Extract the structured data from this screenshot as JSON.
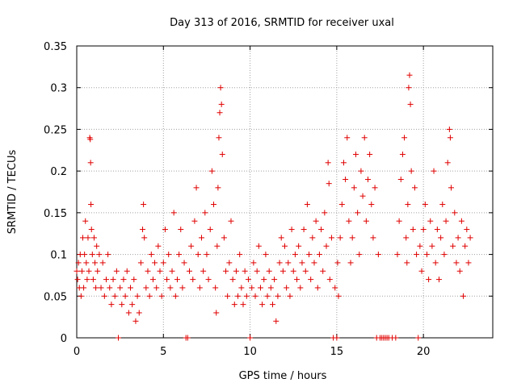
{
  "chart_data": {
    "type": "scatter",
    "title": "Day 313 of 2016, SRMTID for receiver uxal",
    "xlabel": "GPS time / hours",
    "ylabel": "SRMTID / TECUs",
    "xlim": [
      0,
      24
    ],
    "ylim": [
      0,
      0.35
    ],
    "xticks": [
      0,
      5,
      10,
      15,
      20
    ],
    "yticks": [
      0,
      0.05,
      0.1,
      0.15,
      0.2,
      0.25,
      0.3,
      0.35
    ],
    "grid": true,
    "marker": "+",
    "color": "#e00000",
    "series": [
      {
        "name": "SRMTID",
        "points": [
          [
            0.0,
            0.08
          ],
          [
            0.05,
            0.07
          ],
          [
            0.1,
            0.09
          ],
          [
            0.15,
            0.06
          ],
          [
            0.2,
            0.1
          ],
          [
            0.25,
            0.05
          ],
          [
            0.3,
            0.08
          ],
          [
            0.35,
            0.12
          ],
          [
            0.4,
            0.06
          ],
          [
            0.45,
            0.1
          ],
          [
            0.5,
            0.14
          ],
          [
            0.55,
            0.09
          ],
          [
            0.6,
            0.07
          ],
          [
            0.65,
            0.12
          ],
          [
            0.7,
            0.08
          ],
          [
            0.75,
            0.24
          ],
          [
            0.78,
            0.238
          ],
          [
            0.8,
            0.21
          ],
          [
            0.82,
            0.16
          ],
          [
            0.85,
            0.13
          ],
          [
            0.9,
            0.1
          ],
          [
            0.95,
            0.07
          ],
          [
            1.0,
            0.12
          ],
          [
            1.05,
            0.09
          ],
          [
            1.1,
            0.06
          ],
          [
            1.15,
            0.11
          ],
          [
            1.2,
            0.08
          ],
          [
            1.3,
            0.1
          ],
          [
            1.4,
            0.06
          ],
          [
            1.5,
            0.09
          ],
          [
            1.6,
            0.05
          ],
          [
            1.7,
            0.07
          ],
          [
            1.8,
            0.1
          ],
          [
            1.9,
            0.06
          ],
          [
            2.0,
            0.04
          ],
          [
            2.1,
            0.07
          ],
          [
            2.2,
            0.05
          ],
          [
            2.3,
            0.08
          ],
          [
            2.4,
            0.0
          ],
          [
            2.5,
            0.06
          ],
          [
            2.6,
            0.04
          ],
          [
            2.7,
            0.07
          ],
          [
            2.8,
            0.05
          ],
          [
            2.9,
            0.08
          ],
          [
            3.0,
            0.03
          ],
          [
            3.1,
            0.06
          ],
          [
            3.2,
            0.04
          ],
          [
            3.3,
            0.07
          ],
          [
            3.4,
            0.02
          ],
          [
            3.5,
            0.05
          ],
          [
            3.6,
            0.03
          ],
          [
            3.7,
            0.09
          ],
          [
            3.8,
            0.13
          ],
          [
            3.85,
            0.16
          ],
          [
            3.9,
            0.12
          ],
          [
            4.0,
            0.06
          ],
          [
            4.1,
            0.08
          ],
          [
            4.2,
            0.05
          ],
          [
            4.3,
            0.1
          ],
          [
            4.4,
            0.07
          ],
          [
            4.5,
            0.09
          ],
          [
            4.6,
            0.06
          ],
          [
            4.7,
            0.11
          ],
          [
            4.8,
            0.08
          ],
          [
            4.9,
            0.05
          ],
          [
            5.0,
            0.09
          ],
          [
            5.1,
            0.13
          ],
          [
            5.2,
            0.07
          ],
          [
            5.3,
            0.1
          ],
          [
            5.4,
            0.06
          ],
          [
            5.5,
            0.08
          ],
          [
            5.6,
            0.15
          ],
          [
            5.7,
            0.05
          ],
          [
            5.8,
            0.07
          ],
          [
            5.9,
            0.1
          ],
          [
            6.0,
            0.13
          ],
          [
            6.1,
            0.06
          ],
          [
            6.2,
            0.09
          ],
          [
            6.3,
            0.0
          ],
          [
            6.4,
            0.0
          ],
          [
            6.5,
            0.08
          ],
          [
            6.6,
            0.11
          ],
          [
            6.7,
            0.07
          ],
          [
            6.8,
            0.14
          ],
          [
            6.9,
            0.18
          ],
          [
            7.0,
            0.1
          ],
          [
            7.1,
            0.06
          ],
          [
            7.2,
            0.12
          ],
          [
            7.3,
            0.08
          ],
          [
            7.4,
            0.15
          ],
          [
            7.5,
            0.1
          ],
          [
            7.6,
            0.07
          ],
          [
            7.7,
            0.13
          ],
          [
            7.8,
            0.2
          ],
          [
            7.9,
            0.16
          ],
          [
            8.0,
            0.06
          ],
          [
            8.05,
            0.03
          ],
          [
            8.1,
            0.11
          ],
          [
            8.15,
            0.18
          ],
          [
            8.2,
            0.24
          ],
          [
            8.25,
            0.27
          ],
          [
            8.3,
            0.3
          ],
          [
            8.35,
            0.28
          ],
          [
            8.4,
            0.22
          ],
          [
            8.5,
            0.12
          ],
          [
            8.6,
            0.08
          ],
          [
            8.7,
            0.05
          ],
          [
            8.8,
            0.09
          ],
          [
            8.9,
            0.14
          ],
          [
            9.0,
            0.07
          ],
          [
            9.1,
            0.04
          ],
          [
            9.2,
            0.08
          ],
          [
            9.3,
            0.05
          ],
          [
            9.4,
            0.1
          ],
          [
            9.5,
            0.06
          ],
          [
            9.6,
            0.04
          ],
          [
            9.7,
            0.08
          ],
          [
            9.8,
            0.05
          ],
          [
            9.9,
            0.07
          ],
          [
            10.0,
            0.0
          ],
          [
            10.1,
            0.06
          ],
          [
            10.2,
            0.09
          ],
          [
            10.3,
            0.05
          ],
          [
            10.4,
            0.08
          ],
          [
            10.5,
            0.11
          ],
          [
            10.6,
            0.06
          ],
          [
            10.7,
            0.04
          ],
          [
            10.8,
            0.07
          ],
          [
            10.9,
            0.1
          ],
          [
            11.0,
            0.05
          ],
          [
            11.1,
            0.08
          ],
          [
            11.2,
            0.06
          ],
          [
            11.3,
            0.04
          ],
          [
            11.4,
            0.07
          ],
          [
            11.5,
            0.02
          ],
          [
            11.6,
            0.05
          ],
          [
            11.7,
            0.09
          ],
          [
            11.8,
            0.12
          ],
          [
            11.9,
            0.08
          ],
          [
            12.0,
            0.11
          ],
          [
            12.1,
            0.06
          ],
          [
            12.2,
            0.09
          ],
          [
            12.3,
            0.05
          ],
          [
            12.4,
            0.13
          ],
          [
            12.5,
            0.08
          ],
          [
            12.6,
            0.1
          ],
          [
            12.7,
            0.07
          ],
          [
            12.8,
            0.11
          ],
          [
            12.9,
            0.06
          ],
          [
            13.0,
            0.09
          ],
          [
            13.1,
            0.13
          ],
          [
            13.2,
            0.08
          ],
          [
            13.3,
            0.16
          ],
          [
            13.4,
            0.1
          ],
          [
            13.5,
            0.07
          ],
          [
            13.6,
            0.12
          ],
          [
            13.7,
            0.09
          ],
          [
            13.8,
            0.14
          ],
          [
            13.9,
            0.06
          ],
          [
            14.0,
            0.1
          ],
          [
            14.1,
            0.13
          ],
          [
            14.2,
            0.08
          ],
          [
            14.3,
            0.15
          ],
          [
            14.4,
            0.11
          ],
          [
            14.5,
            0.21
          ],
          [
            14.55,
            0.185
          ],
          [
            14.6,
            0.07
          ],
          [
            14.7,
            0.12
          ],
          [
            14.8,
            0.0
          ],
          [
            14.9,
            0.06
          ],
          [
            15.0,
            0.0
          ],
          [
            15.05,
            0.09
          ],
          [
            15.1,
            0.05
          ],
          [
            15.2,
            0.12
          ],
          [
            15.3,
            0.16
          ],
          [
            15.4,
            0.21
          ],
          [
            15.5,
            0.19
          ],
          [
            15.6,
            0.24
          ],
          [
            15.7,
            0.14
          ],
          [
            15.8,
            0.09
          ],
          [
            15.9,
            0.12
          ],
          [
            16.0,
            0.18
          ],
          [
            16.1,
            0.22
          ],
          [
            16.2,
            0.15
          ],
          [
            16.3,
            0.1
          ],
          [
            16.4,
            0.2
          ],
          [
            16.5,
            0.17
          ],
          [
            16.6,
            0.24
          ],
          [
            16.7,
            0.14
          ],
          [
            16.8,
            0.19
          ],
          [
            16.9,
            0.22
          ],
          [
            17.0,
            0.16
          ],
          [
            17.1,
            0.12
          ],
          [
            17.2,
            0.18
          ],
          [
            17.3,
            0.0
          ],
          [
            17.4,
            0.1
          ],
          [
            17.5,
            0.0
          ],
          [
            17.6,
            0.0
          ],
          [
            17.7,
            0.0
          ],
          [
            17.8,
            0.0
          ],
          [
            17.9,
            0.0
          ],
          [
            18.0,
            0.0
          ],
          [
            18.2,
            0.0
          ],
          [
            18.4,
            0.0
          ],
          [
            18.5,
            0.1
          ],
          [
            18.6,
            0.14
          ],
          [
            18.7,
            0.19
          ],
          [
            18.8,
            0.22
          ],
          [
            18.9,
            0.24
          ],
          [
            19.0,
            0.12
          ],
          [
            19.05,
            0.09
          ],
          [
            19.1,
            0.16
          ],
          [
            19.15,
            0.3
          ],
          [
            19.2,
            0.315
          ],
          [
            19.25,
            0.28
          ],
          [
            19.3,
            0.2
          ],
          [
            19.4,
            0.13
          ],
          [
            19.5,
            0.18
          ],
          [
            19.6,
            0.1
          ],
          [
            19.7,
            0.0
          ],
          [
            19.8,
            0.11
          ],
          [
            19.9,
            0.08
          ],
          [
            20.0,
            0.13
          ],
          [
            20.1,
            0.16
          ],
          [
            20.2,
            0.1
          ],
          [
            20.3,
            0.07
          ],
          [
            20.4,
            0.14
          ],
          [
            20.5,
            0.11
          ],
          [
            20.6,
            0.2
          ],
          [
            20.7,
            0.09
          ],
          [
            20.8,
            0.13
          ],
          [
            20.9,
            0.07
          ],
          [
            21.0,
            0.12
          ],
          [
            21.1,
            0.16
          ],
          [
            21.2,
            0.1
          ],
          [
            21.3,
            0.14
          ],
          [
            21.4,
            0.21
          ],
          [
            21.5,
            0.25
          ],
          [
            21.55,
            0.24
          ],
          [
            21.6,
            0.18
          ],
          [
            21.7,
            0.11
          ],
          [
            21.8,
            0.15
          ],
          [
            21.9,
            0.09
          ],
          [
            22.0,
            0.12
          ],
          [
            22.1,
            0.08
          ],
          [
            22.2,
            0.14
          ],
          [
            22.3,
            0.05
          ],
          [
            22.4,
            0.11
          ],
          [
            22.5,
            0.13
          ],
          [
            22.6,
            0.09
          ],
          [
            22.7,
            0.12
          ]
        ]
      }
    ]
  }
}
